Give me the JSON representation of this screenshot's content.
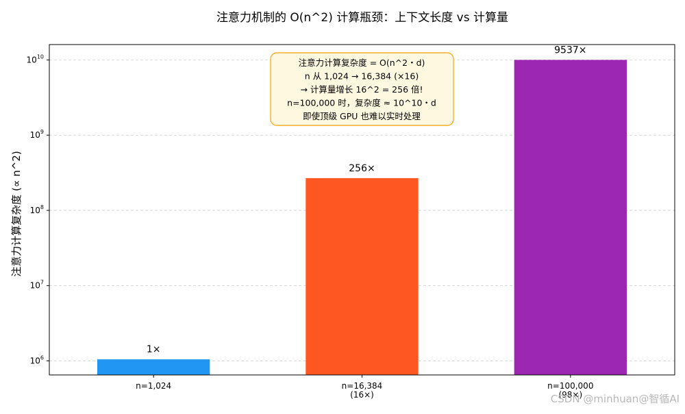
{
  "chart_data": {
    "type": "bar",
    "title": "注意力机制的 O(n^2) 计算瓶颈：上下文长度 vs 计算量",
    "ylabel": "注意力计算复杂度 (∝ n^2)",
    "xlabel": "",
    "yscale": "log",
    "ylim": [
      650000,
      16000000000
    ],
    "grid": "y, dashed",
    "categories": [
      [
        "n=1,024"
      ],
      [
        "n=16,384",
        "(16×)"
      ],
      [
        "n=100,000",
        "(98×)"
      ]
    ],
    "values": [
      1048576,
      268435456,
      10000000000
    ],
    "data_labels": [
      "1×",
      "256×",
      "9537×"
    ],
    "colors": [
      "#2196F3",
      "#FF5722",
      "#9C27B0"
    ],
    "y_ticks": [
      {
        "value": 1000000,
        "base": "10",
        "exp": "6"
      },
      {
        "value": 10000000,
        "base": "10",
        "exp": "7"
      },
      {
        "value": 100000000,
        "base": "10",
        "exp": "8"
      },
      {
        "value": 1000000000,
        "base": "10",
        "exp": "9"
      },
      {
        "value": 10000000000,
        "base": "10",
        "exp": "10"
      }
    ],
    "annotation": {
      "lines": [
        "注意力计算复杂度 = O(n^2・d)",
        "n 从 1,024 → 16,384 (×16)",
        "→ 计算量增长 16^2 = 256 倍!",
        "n=100,000 时，复杂度 ≈ 10^10・d",
        "即使顶级 GPU 也难以实时处理"
      ],
      "box_face": "#FFF8E1",
      "box_edge": "#FFA000"
    }
  },
  "watermark": "CSDN @minhuan@智循AI"
}
